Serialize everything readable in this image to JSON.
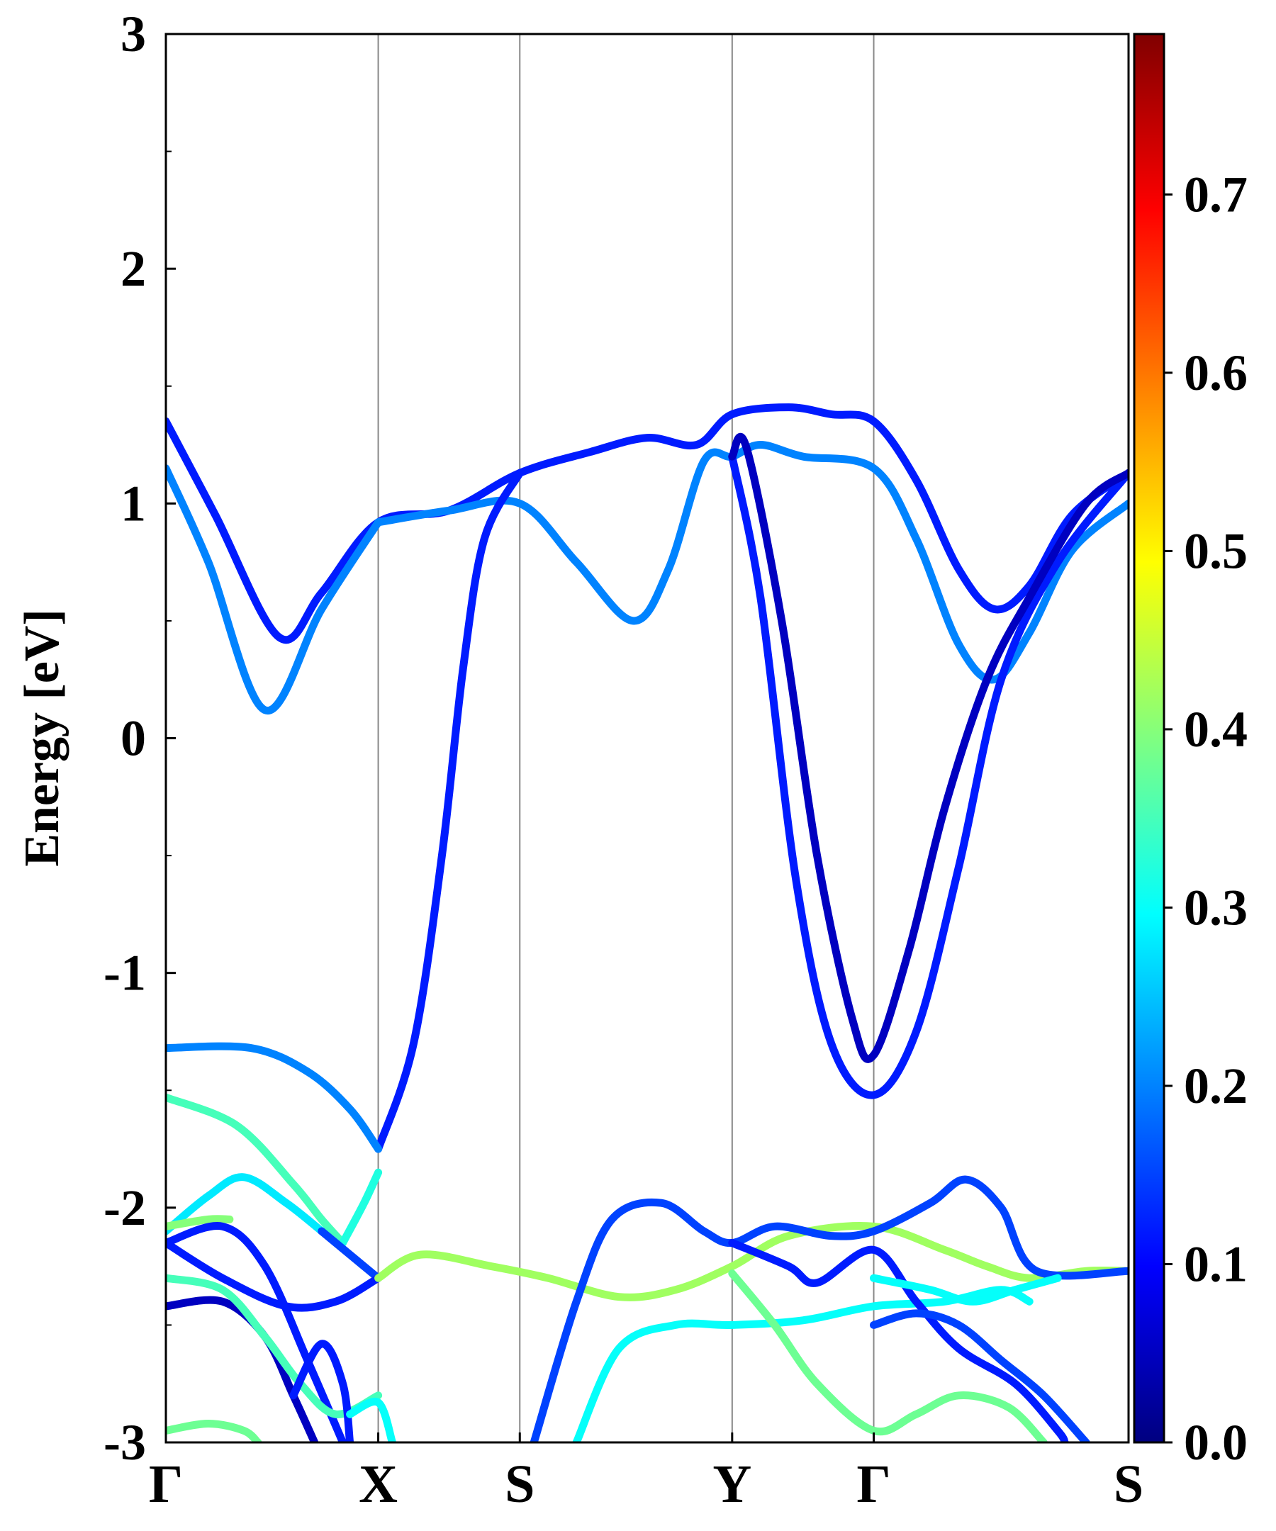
{
  "chart_data": {
    "type": "line",
    "title": "",
    "ylabel": "Energy [eV]",
    "xlabel": "",
    "ylim": [
      -3,
      3
    ],
    "xlim": [
      0,
      6.8
    ],
    "y_ticks": [
      {
        "value": -3,
        "label": "-3"
      },
      {
        "value": -2,
        "label": "-2"
      },
      {
        "value": -1,
        "label": "-1"
      },
      {
        "value": 0,
        "label": "0"
      },
      {
        "value": 1,
        "label": "1"
      },
      {
        "value": 2,
        "label": "2"
      },
      {
        "value": 3,
        "label": "3"
      }
    ],
    "y_minor_ticks": [
      -2.5,
      -1.5,
      -0.5,
      0.5,
      1.5,
      2.5
    ],
    "kpoints": [
      {
        "label": "Γ",
        "x": 0.0
      },
      {
        "label": "X",
        "x": 1.5
      },
      {
        "label": "S",
        "x": 2.5
      },
      {
        "label": "Y",
        "x": 4.0
      },
      {
        "label": "Γ",
        "x": 5.0
      },
      {
        "label": "S",
        "x": 6.8
      }
    ],
    "grid": "vertical lines at high-symmetry points",
    "colorbar": {
      "colormap": "jet",
      "min": 0.0,
      "max": 0.79,
      "ticks": [
        {
          "value": 0.0,
          "label": "0.0"
        },
        {
          "value": 0.1,
          "label": "0.1"
        },
        {
          "value": 0.2,
          "label": "0.2"
        },
        {
          "value": 0.3,
          "label": "0.3"
        },
        {
          "value": 0.4,
          "label": "0.4"
        },
        {
          "value": 0.5,
          "label": "0.5"
        },
        {
          "value": 0.6,
          "label": "0.6"
        },
        {
          "value": 0.7,
          "label": "0.7"
        }
      ]
    },
    "series": [
      {
        "color_value": 0.12,
        "points": [
          [
            0,
            1.35
          ],
          [
            0.35,
            0.95
          ],
          [
            0.8,
            0.43
          ],
          [
            1.1,
            0.62
          ],
          [
            1.5,
            0.92
          ],
          [
            2.0,
            0.97
          ],
          [
            2.5,
            1.13
          ],
          [
            3.0,
            1.22
          ],
          [
            3.4,
            1.28
          ],
          [
            3.75,
            1.25
          ],
          [
            4.0,
            1.38
          ],
          [
            4.4,
            1.41
          ],
          [
            4.7,
            1.38
          ],
          [
            5.0,
            1.35
          ],
          [
            5.3,
            1.1
          ],
          [
            5.6,
            0.72
          ],
          [
            5.85,
            0.55
          ],
          [
            6.1,
            0.65
          ],
          [
            6.4,
            0.95
          ],
          [
            6.8,
            1.13
          ]
        ]
      },
      {
        "color_value": 0.2,
        "points": [
          [
            0,
            1.15
          ],
          [
            0.3,
            0.75
          ],
          [
            0.7,
            0.12
          ],
          [
            1.1,
            0.55
          ],
          [
            1.5,
            0.92
          ]
        ]
      },
      {
        "color_value": 0.2,
        "points": [
          [
            1.5,
            0.92
          ],
          [
            2.0,
            0.97
          ],
          [
            2.5,
            1.0
          ],
          [
            2.9,
            0.75
          ],
          [
            3.3,
            0.5
          ],
          [
            3.55,
            0.72
          ],
          [
            3.8,
            1.18
          ],
          [
            4.0,
            1.2
          ],
          [
            4.2,
            1.25
          ],
          [
            4.5,
            1.2
          ],
          [
            5.0,
            1.15
          ],
          [
            5.3,
            0.85
          ],
          [
            5.6,
            0.4
          ],
          [
            5.85,
            0.25
          ],
          [
            6.1,
            0.45
          ],
          [
            6.4,
            0.8
          ],
          [
            6.8,
            1.0
          ]
        ]
      },
      {
        "color_value": 0.12,
        "points": [
          [
            1.5,
            -1.75
          ],
          [
            1.75,
            -1.3
          ],
          [
            1.95,
            -0.5
          ],
          [
            2.1,
            0.3
          ],
          [
            2.25,
            0.85
          ],
          [
            2.5,
            1.13
          ]
        ]
      },
      {
        "color_value": 0.12,
        "points": [
          [
            4.0,
            1.2
          ],
          [
            4.2,
            0.6
          ],
          [
            4.45,
            -0.6
          ],
          [
            4.7,
            -1.3
          ],
          [
            5.0,
            -1.52
          ],
          [
            5.3,
            -1.25
          ],
          [
            5.6,
            -0.55
          ],
          [
            5.9,
            0.25
          ],
          [
            6.3,
            0.75
          ],
          [
            6.8,
            1.13
          ]
        ]
      },
      {
        "color_value": 0.05,
        "points": [
          [
            4.0,
            1.2
          ],
          [
            4.1,
            1.24
          ],
          [
            4.35,
            0.5
          ],
          [
            4.6,
            -0.5
          ],
          [
            4.85,
            -1.2
          ],
          [
            5.0,
            -1.35
          ],
          [
            5.25,
            -0.9
          ],
          [
            5.5,
            -0.3
          ],
          [
            5.8,
            0.25
          ],
          [
            6.1,
            0.6
          ],
          [
            6.5,
            1.0
          ],
          [
            6.8,
            1.13
          ]
        ]
      },
      {
        "color_value": 0.2,
        "points": [
          [
            0,
            -1.32
          ],
          [
            0.6,
            -1.32
          ],
          [
            1.0,
            -1.42
          ],
          [
            1.3,
            -1.58
          ],
          [
            1.5,
            -1.75
          ]
        ]
      },
      {
        "color_value": 0.35,
        "points": [
          [
            0,
            -1.53
          ],
          [
            0.5,
            -1.65
          ],
          [
            0.9,
            -1.9
          ],
          [
            1.1,
            -2.05
          ],
          [
            1.25,
            -2.15
          ]
        ]
      },
      {
        "color_value": 0.32,
        "points": [
          [
            1.25,
            -2.15
          ],
          [
            1.4,
            -1.98
          ],
          [
            1.5,
            -1.85
          ]
        ]
      },
      {
        "color_value": 0.28,
        "points": [
          [
            0,
            -2.1
          ],
          [
            0.3,
            -1.95
          ],
          [
            0.55,
            -1.87
          ],
          [
            0.85,
            -1.98
          ],
          [
            1.1,
            -2.1
          ]
        ]
      },
      {
        "color_value": 0.15,
        "points": [
          [
            1.1,
            -2.1
          ],
          [
            1.5,
            -2.3
          ]
        ]
      },
      {
        "color_value": 0.4,
        "points": [
          [
            0,
            -2.08
          ],
          [
            0.3,
            -2.05
          ],
          [
            0.45,
            -2.05
          ]
        ]
      },
      {
        "color_value": 0.12,
        "points": [
          [
            0,
            -2.15
          ],
          [
            0.4,
            -2.3
          ],
          [
            0.85,
            -2.42
          ],
          [
            1.2,
            -2.4
          ],
          [
            1.5,
            -2.3
          ]
        ]
      },
      {
        "color_value": 0.05,
        "points": [
          [
            0,
            -2.42
          ],
          [
            0.4,
            -2.4
          ],
          [
            0.7,
            -2.55
          ],
          [
            0.9,
            -2.8
          ],
          [
            1.05,
            -3.0
          ]
        ]
      },
      {
        "color_value": 0.12,
        "points": [
          [
            0,
            -2.15
          ],
          [
            0.4,
            -2.08
          ],
          [
            0.7,
            -2.25
          ],
          [
            1.0,
            -2.65
          ],
          [
            1.25,
            -3.0
          ]
        ]
      },
      {
        "color_value": 0.35,
        "points": [
          [
            0,
            -2.3
          ],
          [
            0.4,
            -2.35
          ],
          [
            0.7,
            -2.55
          ],
          [
            0.95,
            -2.75
          ],
          [
            1.2,
            -2.88
          ],
          [
            1.5,
            -2.8
          ]
        ]
      },
      {
        "color_value": 0.12,
        "points": [
          [
            0.9,
            -2.8
          ],
          [
            1.1,
            -2.58
          ],
          [
            1.25,
            -2.75
          ],
          [
            1.3,
            -3.0
          ]
        ]
      },
      {
        "color_value": 0.3,
        "points": [
          [
            1.3,
            -2.88
          ],
          [
            1.5,
            -2.83
          ],
          [
            1.6,
            -3.0
          ]
        ]
      },
      {
        "color_value": 0.38,
        "points": [
          [
            0,
            -2.95
          ],
          [
            0.3,
            -2.92
          ],
          [
            0.55,
            -2.95
          ],
          [
            0.65,
            -3.0
          ]
        ]
      },
      {
        "color_value": 0.42,
        "points": [
          [
            1.5,
            -2.3
          ],
          [
            1.8,
            -2.2
          ],
          [
            2.3,
            -2.25
          ],
          [
            2.7,
            -2.3
          ],
          [
            3.2,
            -2.38
          ],
          [
            3.6,
            -2.35
          ],
          [
            4.0,
            -2.25
          ],
          [
            4.4,
            -2.12
          ],
          [
            5.0,
            -2.08
          ],
          [
            5.5,
            -2.18
          ],
          [
            5.8,
            -2.25
          ],
          [
            6.1,
            -2.3
          ],
          [
            6.5,
            -2.27
          ],
          [
            6.8,
            -2.27
          ]
        ]
      },
      {
        "color_value": 0.15,
        "points": [
          [
            2.6,
            -3.0
          ],
          [
            2.9,
            -2.4
          ],
          [
            3.15,
            -2.05
          ],
          [
            3.5,
            -1.98
          ],
          [
            3.8,
            -2.1
          ],
          [
            4.0,
            -2.15
          ],
          [
            4.3,
            -2.08
          ],
          [
            4.7,
            -2.12
          ],
          [
            5.0,
            -2.1
          ],
          [
            5.4,
            -1.98
          ],
          [
            5.65,
            -1.88
          ],
          [
            5.9,
            -2.0
          ],
          [
            6.15,
            -2.27
          ],
          [
            6.8,
            -2.27
          ]
        ]
      },
      {
        "color_value": 0.3,
        "points": [
          [
            2.9,
            -3.0
          ],
          [
            3.2,
            -2.6
          ],
          [
            3.6,
            -2.5
          ],
          [
            4.0,
            -2.5
          ],
          [
            4.5,
            -2.48
          ],
          [
            5.0,
            -2.42
          ],
          [
            5.5,
            -2.4
          ],
          [
            5.9,
            -2.35
          ],
          [
            6.1,
            -2.4
          ]
        ]
      },
      {
        "color_value": 0.12,
        "points": [
          [
            4.0,
            -2.15
          ],
          [
            4.4,
            -2.25
          ],
          [
            4.6,
            -2.32
          ],
          [
            5.0,
            -2.18
          ],
          [
            5.3,
            -2.4
          ],
          [
            5.6,
            -2.6
          ],
          [
            6.0,
            -2.75
          ],
          [
            6.3,
            -2.95
          ],
          [
            6.35,
            -3.0
          ]
        ]
      },
      {
        "color_value": 0.38,
        "points": [
          [
            4.0,
            -2.28
          ],
          [
            4.3,
            -2.5
          ],
          [
            4.6,
            -2.75
          ],
          [
            5.0,
            -2.95
          ],
          [
            5.3,
            -2.88
          ],
          [
            5.6,
            -2.8
          ],
          [
            5.95,
            -2.85
          ],
          [
            6.2,
            -3.0
          ]
        ]
      },
      {
        "color_value": 0.3,
        "points": [
          [
            5.0,
            -2.3
          ],
          [
            5.4,
            -2.35
          ],
          [
            5.7,
            -2.4
          ],
          [
            6.0,
            -2.35
          ],
          [
            6.3,
            -2.3
          ]
        ]
      },
      {
        "color_value": 0.15,
        "points": [
          [
            5.0,
            -2.5
          ],
          [
            5.3,
            -2.45
          ],
          [
            5.6,
            -2.5
          ],
          [
            5.9,
            -2.65
          ],
          [
            6.2,
            -2.8
          ],
          [
            6.5,
            -3.0
          ]
        ]
      }
    ]
  }
}
